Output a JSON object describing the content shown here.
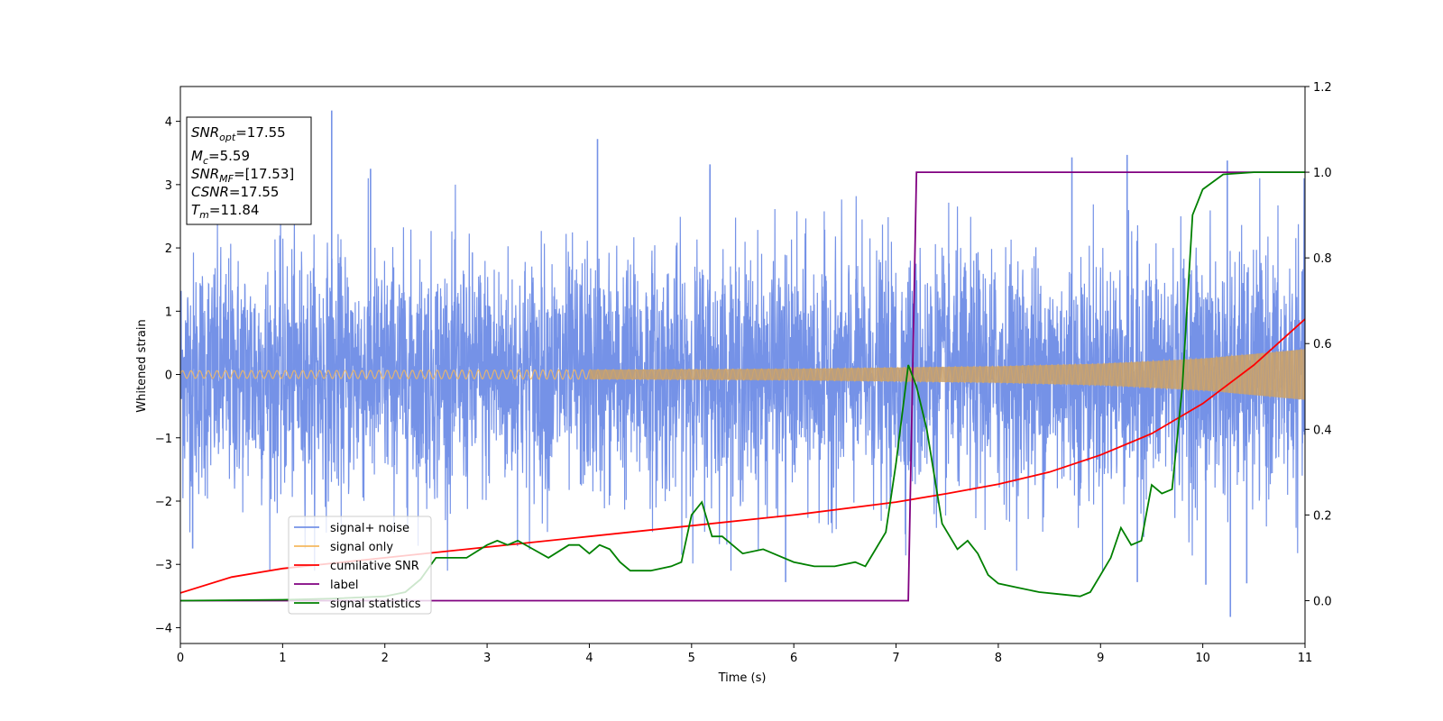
{
  "chart_data": {
    "type": "line",
    "xlabel": "Time (s)",
    "ylabel": "Whitened strain",
    "xlim": [
      0,
      11
    ],
    "ylim": [
      -4.25,
      4.55
    ],
    "y2lim": [
      -0.1,
      1.2
    ],
    "xticks": [
      "0",
      "1",
      "2",
      "3",
      "4",
      "5",
      "6",
      "7",
      "8",
      "9",
      "10",
      "11"
    ],
    "yticks": [
      "−4",
      "−3",
      "−2",
      "−1",
      "0",
      "1",
      "2",
      "3",
      "4"
    ],
    "y2ticks": [
      "0.0",
      "0.2",
      "0.4",
      "0.6",
      "0.8",
      "1.0",
      "1.2"
    ],
    "grid": false,
    "legend_position": "lower-left",
    "info_box": {
      "lines": [
        {
          "label": "SNR",
          "sub": "opt",
          "value": "=17.55"
        },
        {
          "label": "M",
          "sub": "c",
          "value": "=5.59"
        },
        {
          "label": "SNR",
          "sub": "MF",
          "value": "=[17.53]"
        },
        {
          "label": "CSNR",
          "sub": "",
          "value": "=17.55"
        },
        {
          "label": "T",
          "sub": "m",
          "value": "=11.84"
        }
      ]
    },
    "series": [
      {
        "name": "signal+ noise",
        "axis": "left",
        "color": "#7592e7",
        "description_values": "noise band approx. std 0.95, peaks up to 4.17 near t=1.48, min -3.83 near t=10.27",
        "noise_std": 0.95,
        "spikes": [
          {
            "x": 1.48,
            "y": 4.17
          },
          {
            "x": 4.08,
            "y": 3.72
          },
          {
            "x": 1.86,
            "y": 3.25
          },
          {
            "x": 5.18,
            "y": 3.25
          },
          {
            "x": 5.18,
            "y": 3.32
          },
          {
            "x": 8.72,
            "y": 3.43
          },
          {
            "x": 9.26,
            "y": 3.47
          },
          {
            "x": 10.24,
            "y": 3.38
          },
          {
            "x": 10.27,
            "y": -3.83
          },
          {
            "x": 0.12,
            "y": -2.75
          },
          {
            "x": 5.92,
            "y": -3.28
          },
          {
            "x": 9.36,
            "y": -3.28
          },
          {
            "x": 10.03,
            "y": -3.32
          },
          {
            "x": 10.43,
            "y": -3.3
          }
        ]
      },
      {
        "name": "signal only",
        "axis": "left",
        "color": "#f5b85f",
        "amplitude": {
          "x": [
            0,
            2,
            4,
            6,
            8,
            9,
            10,
            11
          ],
          "y": [
            0.06,
            0.065,
            0.075,
            0.09,
            0.13,
            0.17,
            0.25,
            0.4
          ]
        }
      },
      {
        "name": "cumilative SNR",
        "axis": "right",
        "color": "#ff0000",
        "x": [
          0,
          0.5,
          1,
          2,
          3,
          4,
          5,
          6,
          7,
          7.5,
          8,
          8.5,
          9,
          9.5,
          10,
          10.5,
          11
        ],
        "y": [
          0.018,
          0.055,
          0.075,
          0.1,
          0.125,
          0.15,
          0.175,
          0.2,
          0.23,
          0.25,
          0.272,
          0.3,
          0.34,
          0.39,
          0.46,
          0.55,
          0.657
        ]
      },
      {
        "name": "label",
        "axis": "right",
        "color": "#800080",
        "x": [
          0,
          7.12,
          7.2,
          11
        ],
        "y": [
          0,
          0,
          1,
          1
        ]
      },
      {
        "name": "signal statistics",
        "axis": "right",
        "color": "#008000",
        "x": [
          0,
          0.5,
          1,
          1.5,
          2,
          2.2,
          2.35,
          2.5,
          2.8,
          3.0,
          3.1,
          3.2,
          3.3,
          3.45,
          3.6,
          3.8,
          3.9,
          4.0,
          4.1,
          4.2,
          4.3,
          4.4,
          4.6,
          4.8,
          4.9,
          5.0,
          5.1,
          5.2,
          5.3,
          5.5,
          5.7,
          5.8,
          6.0,
          6.2,
          6.4,
          6.6,
          6.7,
          6.8,
          6.9,
          7.0,
          7.12,
          7.2,
          7.3,
          7.45,
          7.6,
          7.7,
          7.8,
          7.9,
          8.0,
          8.2,
          8.4,
          8.6,
          8.8,
          8.9,
          9.0,
          9.1,
          9.2,
          9.3,
          9.4,
          9.5,
          9.6,
          9.7,
          9.8,
          9.9,
          10.0,
          10.2,
          10.5,
          11.0
        ],
        "y": [
          0.0,
          0.001,
          0.002,
          0.005,
          0.01,
          0.02,
          0.05,
          0.1,
          0.1,
          0.13,
          0.14,
          0.13,
          0.14,
          0.12,
          0.1,
          0.13,
          0.13,
          0.11,
          0.13,
          0.12,
          0.09,
          0.07,
          0.07,
          0.08,
          0.09,
          0.2,
          0.23,
          0.15,
          0.15,
          0.11,
          0.12,
          0.11,
          0.09,
          0.08,
          0.08,
          0.09,
          0.08,
          0.12,
          0.16,
          0.32,
          0.55,
          0.5,
          0.4,
          0.18,
          0.12,
          0.14,
          0.11,
          0.06,
          0.04,
          0.03,
          0.02,
          0.015,
          0.01,
          0.02,
          0.06,
          0.1,
          0.17,
          0.13,
          0.14,
          0.27,
          0.25,
          0.26,
          0.5,
          0.9,
          0.96,
          0.995,
          1.0,
          1.0
        ]
      }
    ]
  }
}
